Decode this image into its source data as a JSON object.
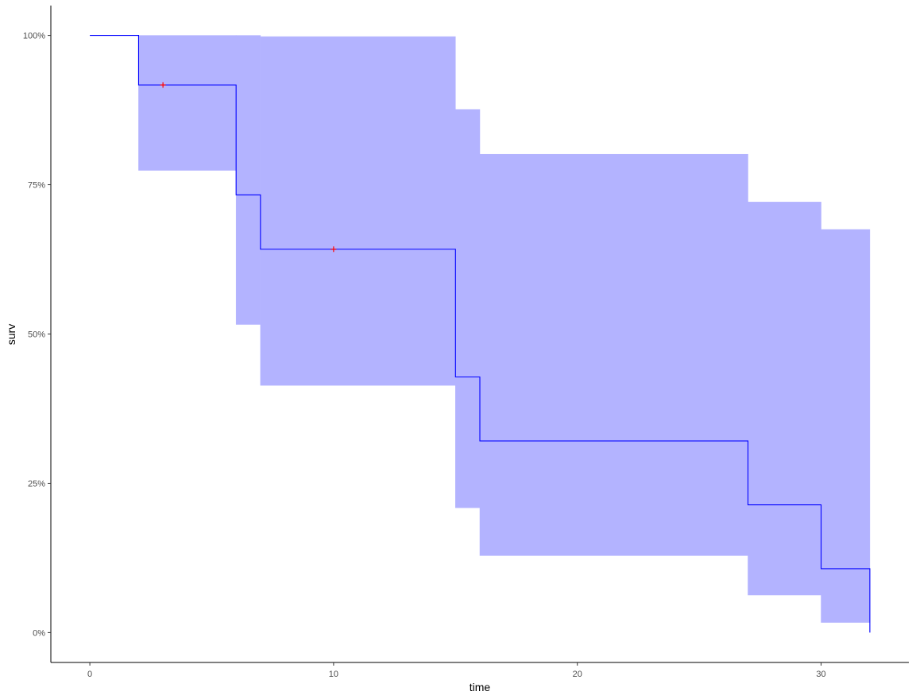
{
  "chart_data": {
    "type": "line",
    "xlabel": "time",
    "ylabel": "surv",
    "xlim": [
      -1.6,
      33.6
    ],
    "ylim": [
      -0.05,
      1.05
    ],
    "x_ticks": [
      0,
      10,
      20,
      30
    ],
    "y_ticks": [
      0,
      0.25,
      0.5,
      0.75,
      1.0
    ],
    "x_tick_labels": [
      "0",
      "10",
      "20",
      "30"
    ],
    "y_tick_labels": [
      "0%",
      "25%",
      "50%",
      "75%",
      "100%"
    ],
    "grid": false,
    "legend": "none",
    "colors": {
      "line": "#0000ff",
      "ribbon": "#b3b3ff",
      "censor": "#ff0000",
      "axis": "#000000",
      "tick_text": "#4d4d4d"
    },
    "series": [
      {
        "values": [
          {
            "time": 0,
            "surv": 1.0,
            "lower": 1.0,
            "upper": 1.0
          },
          {
            "time": 2,
            "surv": 0.917,
            "lower": 0.774,
            "upper": 1.0
          },
          {
            "time": 6,
            "surv": 0.733,
            "lower": 0.516,
            "upper": 1.0
          },
          {
            "time": 7,
            "surv": 0.642,
            "lower": 0.414,
            "upper": 0.998
          },
          {
            "time": 15,
            "surv": 0.428,
            "lower": 0.209,
            "upper": 0.876
          },
          {
            "time": 16,
            "surv": 0.321,
            "lower": 0.129,
            "upper": 0.801
          },
          {
            "time": 27,
            "surv": 0.214,
            "lower": 0.063,
            "upper": 0.721
          },
          {
            "time": 30,
            "surv": 0.107,
            "lower": 0.017,
            "upper": 0.675
          },
          {
            "time": 32,
            "surv": 0.0,
            "lower": 0.0,
            "upper": 0.0
          }
        ],
        "end_time": 32
      }
    ],
    "censored": [
      {
        "time": 3,
        "surv": 0.917
      },
      {
        "time": 10,
        "surv": 0.642
      }
    ]
  }
}
